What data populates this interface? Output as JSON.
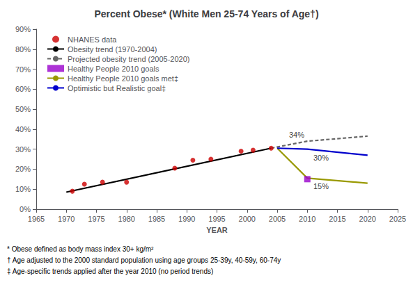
{
  "chart_data": {
    "type": "line",
    "title": "Percent Obese* (White Men 25-74 Years of Age†)",
    "xlabel": "YEAR",
    "xlim": [
      1965,
      2025
    ],
    "ylim": [
      0,
      90
    ],
    "xticks": [
      1965,
      1970,
      1975,
      1980,
      1985,
      1990,
      1995,
      2000,
      2005,
      2010,
      2015,
      2020,
      2025
    ],
    "yticks": [
      {
        "value": 0,
        "label": "0%"
      },
      {
        "value": 10,
        "label": "10%"
      },
      {
        "value": 20,
        "label": "20%"
      },
      {
        "value": 30,
        "label": "30%"
      },
      {
        "value": 40,
        "label": "40%"
      },
      {
        "value": 50,
        "label": "50%"
      },
      {
        "value": 60,
        "label": "60%"
      },
      {
        "value": 70,
        "label": "70%"
      },
      {
        "value": 80,
        "label": "80%"
      },
      {
        "value": 90,
        "label": "90%"
      }
    ],
    "grid": false,
    "legend": "upper left",
    "series": [
      {
        "name": "NHANES data",
        "type": "scatter",
        "marker": "circle",
        "color": "#cc0000",
        "x": [
          1971,
          1973,
          1976,
          1980,
          1988,
          1991,
          1994,
          1999,
          2001,
          2004
        ],
        "values": [
          9.0,
          12.5,
          13.5,
          13.5,
          20.5,
          24.5,
          25.0,
          29.0,
          29.5,
          30.5
        ]
      },
      {
        "name": "Obesity trend (1970-2004)",
        "type": "line",
        "line_style": "solid",
        "color": "#000000",
        "x": [
          1970,
          2004
        ],
        "values": [
          8.5,
          30.5
        ]
      },
      {
        "name": "Projected obesity trend (2005-2020)",
        "type": "line",
        "line_style": "dashed",
        "color": "#666666",
        "x": [
          2004,
          2010,
          2020
        ],
        "values": [
          30.5,
          34.0,
          36.5
        ]
      },
      {
        "name": "Healthy People 2010 goals",
        "type": "scatter",
        "marker": "square",
        "color": "#9900CC",
        "x": [
          2010
        ],
        "values": [
          15.0
        ]
      },
      {
        "name": "Healthy People 2010 goals met‡",
        "type": "line",
        "line_style": "solid",
        "color": "#999900",
        "x": [
          2005,
          2010,
          2020
        ],
        "values": [
          30.5,
          15.5,
          13.0
        ]
      },
      {
        "name": "Optimistic but Realistic goal‡",
        "type": "line",
        "line_style": "solid",
        "color": "#0000CC",
        "x": [
          2005,
          2010,
          2020
        ],
        "values": [
          30.5,
          30.0,
          27.0
        ]
      }
    ],
    "annotations": [
      {
        "text": "34%",
        "x": 2009.5,
        "y": 35.2
      },
      {
        "text": "30%",
        "x": 2011.0,
        "y": 27.5
      },
      {
        "text": "15%",
        "x": 2011.0,
        "y": 13.5
      }
    ],
    "footnotes": [
      "* Obese defined as body mass index 30+ kg/m²",
      "† Age adjusted to the 2000 standard population using age groups 25-39y, 40-59y, 60-74y",
      "‡ Age-specific trends applied after the year 2010 (no period trends)"
    ]
  }
}
